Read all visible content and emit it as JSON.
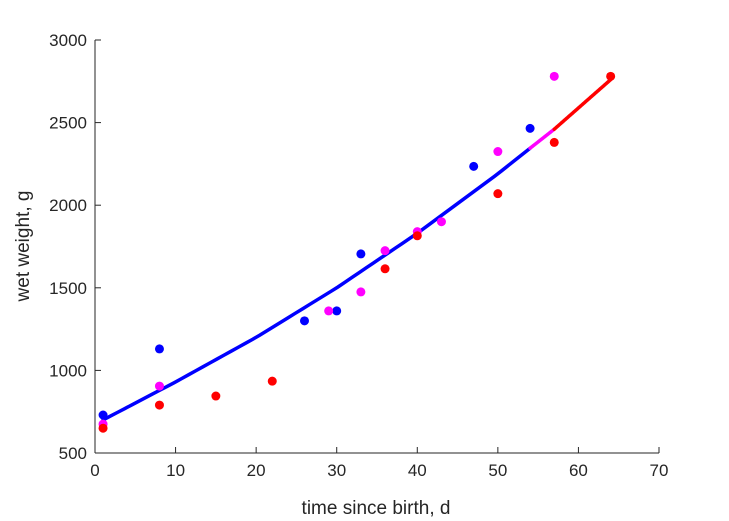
{
  "chart_data": {
    "type": "scatter",
    "xlabel": "time since birth, d",
    "ylabel": "wet weight, g",
    "xlim": [
      0,
      70
    ],
    "ylim": [
      500,
      3000
    ],
    "xticks": [
      "0",
      "10",
      "20",
      "30",
      "40",
      "50",
      "60",
      "70"
    ],
    "yticks": [
      "500",
      "1000",
      "1500",
      "2000",
      "2500",
      "3000"
    ],
    "grid": false,
    "legend": "none",
    "series": [
      {
        "color": "#0000ff",
        "points": [
          [
            1,
            730
          ],
          [
            8,
            1130
          ],
          [
            26,
            1300
          ],
          [
            30,
            1360
          ],
          [
            33,
            1705
          ],
          [
            47,
            2235
          ],
          [
            54,
            2465
          ]
        ]
      },
      {
        "color": "#ff00ff",
        "points": [
          [
            1,
            675
          ],
          [
            8,
            905
          ],
          [
            29,
            1360
          ],
          [
            33,
            1475
          ],
          [
            36,
            1725
          ],
          [
            40,
            1840
          ],
          [
            43,
            1900
          ],
          [
            50,
            2325
          ],
          [
            57,
            2780
          ]
        ]
      },
      {
        "color": "#ff0000",
        "points": [
          [
            1,
            650
          ],
          [
            8,
            790
          ],
          [
            15,
            845
          ],
          [
            22,
            935
          ],
          [
            36,
            1615
          ],
          [
            40,
            1815
          ],
          [
            50,
            2070
          ],
          [
            57,
            2380
          ],
          [
            64,
            2780
          ]
        ]
      }
    ],
    "curve": {
      "segments": [
        {
          "color": "#0000ff",
          "x_range": [
            1,
            54
          ]
        },
        {
          "color": "#ff00ff",
          "x_range": [
            54,
            57
          ]
        },
        {
          "color": "#ff0000",
          "x_range": [
            57,
            64
          ]
        }
      ],
      "points": [
        [
          1,
          700
        ],
        [
          10,
          930
        ],
        [
          20,
          1200
        ],
        [
          30,
          1500
        ],
        [
          40,
          1830
        ],
        [
          50,
          2190
        ],
        [
          54,
          2345
        ],
        [
          57,
          2460
        ],
        [
          64,
          2760
        ]
      ]
    }
  }
}
